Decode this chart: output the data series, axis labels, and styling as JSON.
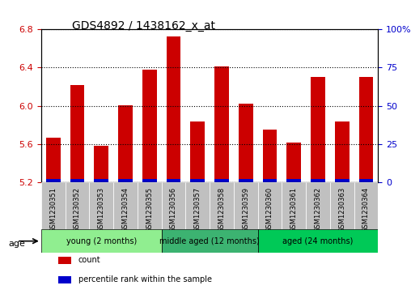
{
  "title": "GDS4892 / 1438162_x_at",
  "samples": [
    "GSM1230351",
    "GSM1230352",
    "GSM1230353",
    "GSM1230354",
    "GSM1230355",
    "GSM1230356",
    "GSM1230357",
    "GSM1230358",
    "GSM1230359",
    "GSM1230360",
    "GSM1230361",
    "GSM1230362",
    "GSM1230363",
    "GSM1230364"
  ],
  "counts": [
    5.67,
    6.22,
    5.58,
    6.01,
    6.38,
    6.73,
    5.84,
    6.41,
    6.02,
    5.75,
    5.62,
    6.3,
    5.84,
    6.3
  ],
  "percentiles": [
    2,
    2,
    2,
    2,
    2,
    2,
    2,
    2,
    2,
    2,
    2,
    2,
    2,
    2
  ],
  "ylim_left": [
    5.2,
    6.8
  ],
  "ylim_right": [
    0,
    100
  ],
  "yticks_left": [
    5.2,
    5.6,
    6.0,
    6.4,
    6.8
  ],
  "yticks_right": [
    0,
    25,
    50,
    75,
    100
  ],
  "ytick_right_labels": [
    "0",
    "25",
    "50",
    "75",
    "100%"
  ],
  "groups": [
    {
      "label": "young (2 months)",
      "start": 0,
      "end": 5,
      "color": "#90EE90"
    },
    {
      "label": "middle aged (12 months)",
      "start": 5,
      "end": 9,
      "color": "#3CB371"
    },
    {
      "label": "aged (24 months)",
      "start": 9,
      "end": 14,
      "color": "#00C957"
    }
  ],
  "bar_color": "#CC0000",
  "percentile_color": "#0000CC",
  "tick_label_color_left": "#CC0000",
  "tick_label_color_right": "#0000CC",
  "xlabel_color": "#CC0000",
  "sample_bg_color": "#C0C0C0",
  "legend_items": [
    {
      "label": "count",
      "color": "#CC0000"
    },
    {
      "label": "percentile rank within the sample",
      "color": "#0000CC"
    }
  ],
  "age_label": "age",
  "grid_color": "#000000",
  "background_color": "#FFFFFF"
}
